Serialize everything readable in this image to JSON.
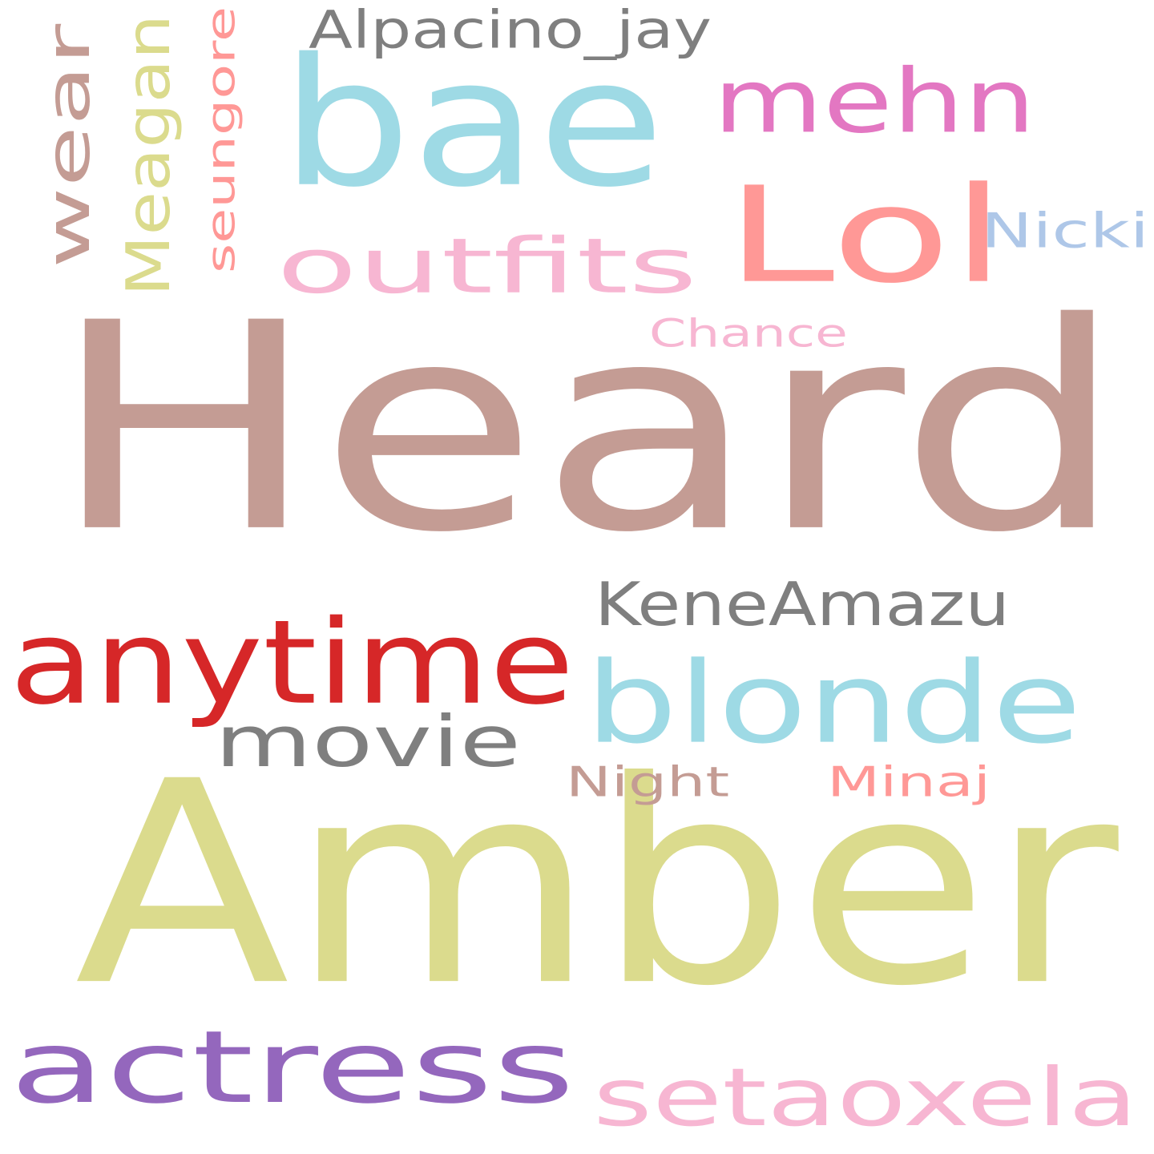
{
  "words": [
    {
      "text": "Heard",
      "color": "#c49c94"
    },
    {
      "text": "Amber",
      "color": "#dbdb8d"
    },
    {
      "text": "bae",
      "color": "#9edae5"
    },
    {
      "text": "Lol",
      "color": "#ff9896"
    },
    {
      "text": "anytime",
      "color": "#d62728"
    },
    {
      "text": "actress",
      "color": "#9467bd"
    },
    {
      "text": "blonde",
      "color": "#9edae5"
    },
    {
      "text": "mehn",
      "color": "#e377c2"
    },
    {
      "text": "outfits",
      "color": "#f7b6d2"
    },
    {
      "text": "setaoxela",
      "color": "#f7b6d2"
    },
    {
      "text": "movie",
      "color": "#7f7f7f"
    },
    {
      "text": "KeneAmazu",
      "color": "#7f7f7f"
    },
    {
      "text": "wear",
      "color": "#c49c94"
    },
    {
      "text": "Meagan",
      "color": "#dbdb8d"
    },
    {
      "text": "Alpacino_jay",
      "color": "#7f7f7f"
    },
    {
      "text": "seungore",
      "color": "#ff9896"
    },
    {
      "text": "Nicki",
      "color": "#aec7e8"
    },
    {
      "text": "Chance",
      "color": "#f7b6d2"
    },
    {
      "text": "Night",
      "color": "#c49c94"
    },
    {
      "text": "Minaj",
      "color": "#ff9896"
    }
  ]
}
